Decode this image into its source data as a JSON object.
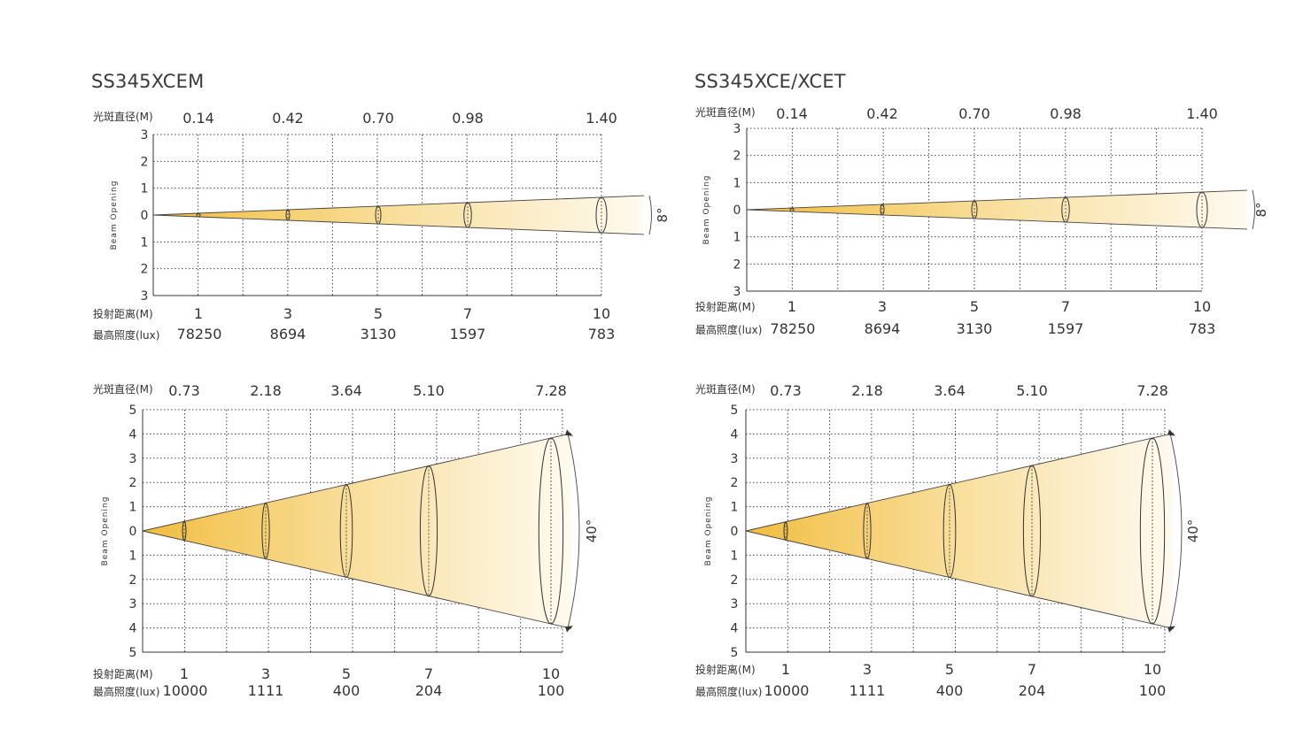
{
  "diagrams": [
    {
      "product": "SS345XCEM",
      "diameter_label": "光斑直径(M)",
      "distance_label": "投射距离(M)",
      "illuminance_label": "最高照度(lux)",
      "axis_label": "Beam Opening",
      "angle": "8°",
      "y_ticks": [
        "3",
        "2",
        "1",
        "0",
        "1",
        "2",
        "3"
      ],
      "distances": [
        "1",
        "3",
        "5",
        "7",
        "10"
      ],
      "diameters": [
        "0.14",
        "0.42",
        "0.70",
        "0.98",
        "1.40"
      ],
      "illuminance": [
        "78250",
        "8694",
        "3130",
        "1597",
        "783"
      ]
    },
    {
      "product": "SS345XCE/XCET",
      "diameter_label": "光斑直径(M)",
      "distance_label": "投射距离(M)",
      "illuminance_label": "最高照度(lux)",
      "axis_label": "Beam Opening",
      "angle": "8°",
      "y_ticks": [
        "3",
        "2",
        "1",
        "0",
        "1",
        "2",
        "3"
      ],
      "distances": [
        "1",
        "3",
        "5",
        "7",
        "10"
      ],
      "diameters": [
        "0.14",
        "0.42",
        "0.70",
        "0.98",
        "1.40"
      ],
      "illuminance": [
        "78250",
        "8694",
        "3130",
        "1597",
        "783"
      ]
    },
    {
      "product": "",
      "diameter_label": "光斑直径(M)",
      "distance_label": "投射距离(M)",
      "illuminance_label": "最高照度(lux)",
      "axis_label": "Beam Opening",
      "angle": "40°",
      "y_ticks": [
        "5",
        "4",
        "3",
        "2",
        "1",
        "0",
        "1",
        "2",
        "3",
        "4",
        "5"
      ],
      "distances": [
        "1",
        "3",
        "5",
        "7",
        "10"
      ],
      "diameters": [
        "0.73",
        "2.18",
        "3.64",
        "5.10",
        "7.28"
      ],
      "illuminance": [
        "10000",
        "1111",
        "400",
        "204",
        "100"
      ]
    },
    {
      "product": "",
      "diameter_label": "光斑直径(M)",
      "distance_label": "投射距离(M)",
      "illuminance_label": "最高照度(lux)",
      "axis_label": "Beam Opening",
      "angle": "40°",
      "y_ticks": [
        "5",
        "4",
        "3",
        "2",
        "1",
        "0",
        "1",
        "2",
        "3",
        "4",
        "5"
      ],
      "distances": [
        "1",
        "3",
        "5",
        "7",
        "10"
      ],
      "diameters": [
        "0.73",
        "2.18",
        "3.64",
        "5.10",
        "7.28"
      ],
      "illuminance": [
        "10000",
        "1111",
        "400",
        "204",
        "100"
      ]
    }
  ],
  "colors": {
    "beam_warm": "#f3c04a",
    "beam_fade": "#fdf6e6",
    "line": "#333333"
  }
}
